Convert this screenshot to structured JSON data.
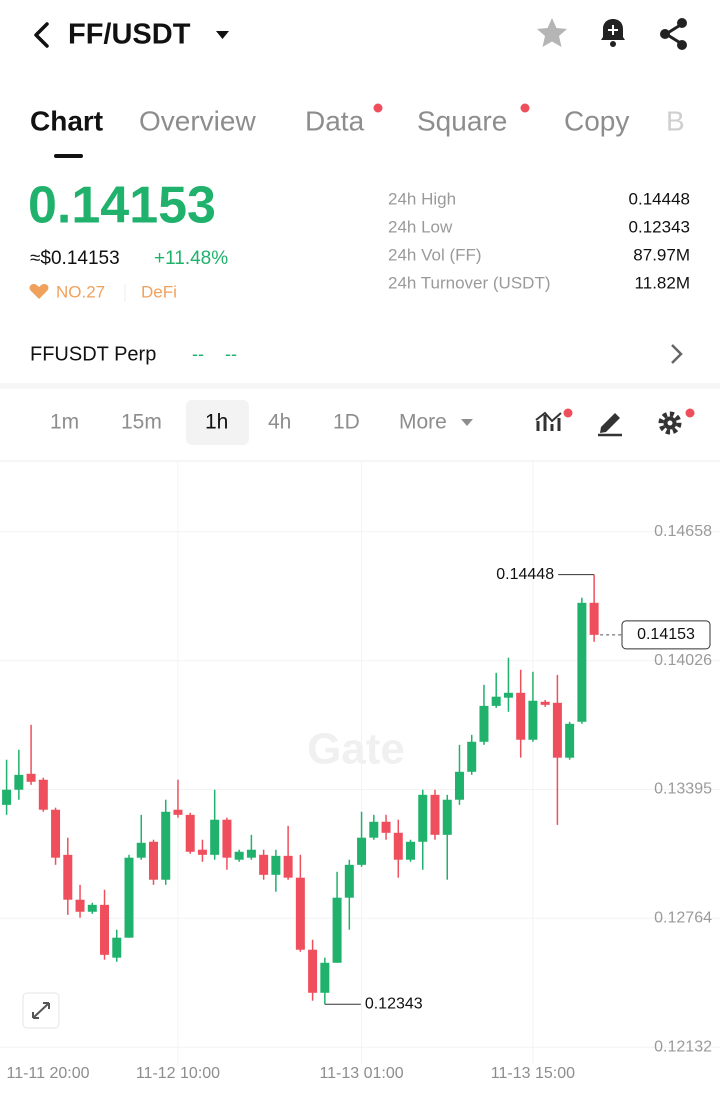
{
  "header": {
    "title": "FF/USDT"
  },
  "tabs": [
    "Chart",
    "Overview",
    "Data",
    "Square",
    "Copy",
    "B"
  ],
  "price": {
    "last": "0.14153",
    "usd": "≈$0.14153",
    "change": "+11.48%",
    "rank": "NO.27",
    "tag": "DeFi"
  },
  "stats": [
    {
      "label": "24h High",
      "value": "0.14448"
    },
    {
      "label": "24h Low",
      "value": "0.12343"
    },
    {
      "label": "24h Vol (FF)",
      "value": "87.97M"
    },
    {
      "label": "24h Turnover (USDT)",
      "value": "11.82M"
    }
  ],
  "perp": {
    "name": "FFUSDT Perp",
    "values": [
      "--",
      "--"
    ]
  },
  "intervals": [
    "1m",
    "15m",
    "1h",
    "4h",
    "1D",
    "More"
  ],
  "active_interval": 2,
  "chart_data": {
    "type": "candlestick",
    "watermark": "Gate",
    "up_color": "#20b26c",
    "down_color": "#ef4f5c",
    "grid": true,
    "ylim": [
      0.1205,
      0.15
    ],
    "yticks": [
      0.12132,
      0.12764,
      0.13395,
      0.14026,
      0.14658
    ],
    "xticks": [
      {
        "value": 0,
        "label": "11-11 20:00"
      },
      {
        "value": 14,
        "label": "11-12 10:00"
      },
      {
        "value": 29,
        "label": "11-13 01:00"
      },
      {
        "value": 43,
        "label": "11-13 15:00"
      }
    ],
    "candles": [
      {
        "open": 0.1332,
        "high": 0.13541,
        "low": 0.13271,
        "close": 0.13394
      },
      {
        "open": 0.13394,
        "high": 0.1359,
        "low": 0.13345,
        "close": 0.13467
      },
      {
        "open": 0.13472,
        "high": 0.13712,
        "low": 0.13418,
        "close": 0.13433
      },
      {
        "open": 0.13443,
        "high": 0.13453,
        "low": 0.13286,
        "close": 0.13296
      },
      {
        "open": 0.13296,
        "high": 0.13306,
        "low": 0.13026,
        "close": 0.13061
      },
      {
        "open": 0.13075,
        "high": 0.13159,
        "low": 0.12781,
        "close": 0.12855
      },
      {
        "open": 0.12855,
        "high": 0.12928,
        "low": 0.12767,
        "close": 0.12796
      },
      {
        "open": 0.12796,
        "high": 0.1284,
        "low": 0.12786,
        "close": 0.1283
      },
      {
        "open": 0.1283,
        "high": 0.12904,
        "low": 0.12561,
        "close": 0.12585
      },
      {
        "open": 0.12571,
        "high": 0.12708,
        "low": 0.12551,
        "close": 0.12669
      },
      {
        "open": 0.12669,
        "high": 0.13075,
        "low": 0.12669,
        "close": 0.13061
      },
      {
        "open": 0.13061,
        "high": 0.13271,
        "low": 0.13051,
        "close": 0.13134
      },
      {
        "open": 0.13139,
        "high": 0.13149,
        "low": 0.12928,
        "close": 0.12953
      },
      {
        "open": 0.12953,
        "high": 0.13345,
        "low": 0.12928,
        "close": 0.13286
      },
      {
        "open": 0.13296,
        "high": 0.13443,
        "low": 0.13257,
        "close": 0.13271
      },
      {
        "open": 0.13271,
        "high": 0.13281,
        "low": 0.1308,
        "close": 0.1309
      },
      {
        "open": 0.131,
        "high": 0.13149,
        "low": 0.13041,
        "close": 0.13075
      },
      {
        "open": 0.13075,
        "high": 0.13394,
        "low": 0.13051,
        "close": 0.13247
      },
      {
        "open": 0.13247,
        "high": 0.13257,
        "low": 0.13002,
        "close": 0.13061
      },
      {
        "open": 0.13051,
        "high": 0.131,
        "low": 0.13041,
        "close": 0.1309
      },
      {
        "open": 0.13061,
        "high": 0.13173,
        "low": 0.13051,
        "close": 0.131
      },
      {
        "open": 0.13075,
        "high": 0.131,
        "low": 0.12953,
        "close": 0.12977
      },
      {
        "open": 0.12977,
        "high": 0.131,
        "low": 0.12894,
        "close": 0.1307
      },
      {
        "open": 0.1307,
        "high": 0.13217,
        "low": 0.12953,
        "close": 0.12963
      },
      {
        "open": 0.12963,
        "high": 0.13075,
        "low": 0.126,
        "close": 0.1261
      },
      {
        "open": 0.1261,
        "high": 0.12659,
        "low": 0.1236,
        "close": 0.12399
      },
      {
        "open": 0.12399,
        "high": 0.12571,
        "low": 0.12343,
        "close": 0.12546
      },
      {
        "open": 0.12546,
        "high": 0.12992,
        "low": 0.12546,
        "close": 0.12865
      },
      {
        "open": 0.12865,
        "high": 0.13051,
        "low": 0.12708,
        "close": 0.13026
      },
      {
        "open": 0.13026,
        "high": 0.13286,
        "low": 0.13016,
        "close": 0.13159
      },
      {
        "open": 0.13159,
        "high": 0.13271,
        "low": 0.13149,
        "close": 0.13237
      },
      {
        "open": 0.13237,
        "high": 0.13271,
        "low": 0.13149,
        "close": 0.13183
      },
      {
        "open": 0.13183,
        "high": 0.13247,
        "low": 0.12963,
        "close": 0.13051
      },
      {
        "open": 0.13051,
        "high": 0.13149,
        "low": 0.13041,
        "close": 0.13139
      },
      {
        "open": 0.13139,
        "high": 0.13394,
        "low": 0.13002,
        "close": 0.13369
      },
      {
        "open": 0.13369,
        "high": 0.13394,
        "low": 0.13149,
        "close": 0.13173
      },
      {
        "open": 0.13173,
        "high": 0.13369,
        "low": 0.12953,
        "close": 0.13345
      },
      {
        "open": 0.13345,
        "high": 0.13614,
        "low": 0.1332,
        "close": 0.13482
      },
      {
        "open": 0.13482,
        "high": 0.13663,
        "low": 0.13467,
        "close": 0.13629
      },
      {
        "open": 0.13629,
        "high": 0.13908,
        "low": 0.13614,
        "close": 0.13805
      },
      {
        "open": 0.13805,
        "high": 0.13967,
        "low": 0.13795,
        "close": 0.1385
      },
      {
        "open": 0.13845,
        "high": 0.14041,
        "low": 0.13776,
        "close": 0.13869
      },
      {
        "open": 0.13869,
        "high": 0.13982,
        "low": 0.13551,
        "close": 0.13639
      },
      {
        "open": 0.13639,
        "high": 0.13972,
        "low": 0.13629,
        "close": 0.1383
      },
      {
        "open": 0.13825,
        "high": 0.13834,
        "low": 0.138,
        "close": 0.1381
      },
      {
        "open": 0.1382,
        "high": 0.13957,
        "low": 0.13222,
        "close": 0.13551
      },
      {
        "open": 0.13551,
        "high": 0.13727,
        "low": 0.13541,
        "close": 0.13717
      },
      {
        "open": 0.13727,
        "high": 0.14335,
        "low": 0.13717,
        "close": 0.1431
      },
      {
        "open": 0.1431,
        "high": 0.14448,
        "low": 0.14119,
        "close": 0.14153
      }
    ]
  }
}
